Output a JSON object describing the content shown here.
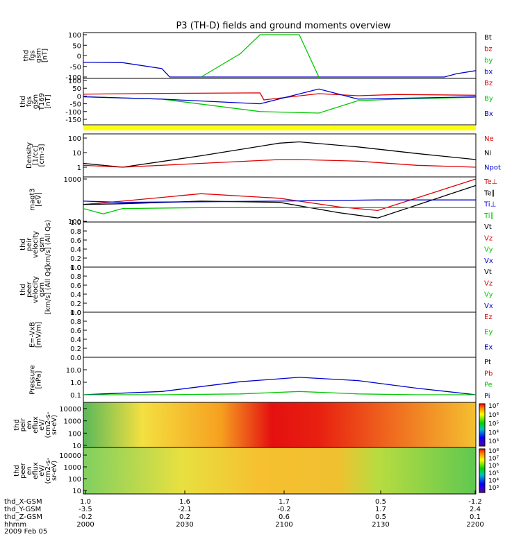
{
  "title": "P3 (TH-D) fields and ground moments overview",
  "colors": {
    "black": "#000000",
    "red": "#dd0000",
    "green": "#00c800",
    "blue": "#0000cc",
    "yellow": "#ffff00"
  },
  "panels": [
    {
      "id": "fgs",
      "ylabel": [
        "thd",
        "fgs",
        "gsm",
        "[nT]"
      ],
      "ticks": [
        "100",
        "50",
        "0",
        "-50",
        "-100"
      ],
      "legend": [
        {
          "t": "Bt",
          "c": "black"
        },
        {
          "t": "bz",
          "c": "red"
        },
        {
          "t": "by",
          "c": "green"
        },
        {
          "t": "bx",
          "c": "blue"
        }
      ]
    },
    {
      "id": "fgs2",
      "ylabel": [
        "thd",
        "fgs",
        "gsm",
        "T169",
        "[nT]"
      ],
      "ticks": [
        "100",
        "50",
        "0",
        "-50",
        "-100",
        "-150"
      ],
      "legend": [
        {
          "t": "Bz",
          "c": "red"
        },
        {
          "t": "By",
          "c": "green"
        },
        {
          "t": "Bx",
          "c": "blue"
        }
      ]
    },
    {
      "id": "density",
      "ylabel": [
        "Density",
        "[1/cc]",
        "[cm-3]"
      ],
      "ticks": [
        "100",
        "10",
        "1"
      ],
      "legend": [
        {
          "t": "Ne",
          "c": "red"
        },
        {
          "t": "Ni",
          "c": "black"
        },
        {
          "t": "Npot",
          "c": "blue"
        }
      ]
    },
    {
      "id": "temp",
      "ylabel": [
        "magt3",
        "[eV]"
      ],
      "ticks": [
        "1000",
        "100"
      ],
      "legend": [
        {
          "t": "Te⊥",
          "c": "red"
        },
        {
          "t": "Te∥",
          "c": "black"
        },
        {
          "t": "Ti⊥",
          "c": "blue"
        },
        {
          "t": "Ti∥",
          "c": "green"
        }
      ]
    },
    {
      "id": "peir",
      "ylabel": [
        "thd",
        "peir",
        "velocity",
        "gsm",
        "[km/s] (All Qs)"
      ],
      "ticks": [
        "1.0",
        "0.8",
        "0.6",
        "0.4",
        "0.2",
        "0.0"
      ],
      "legend": [
        {
          "t": "Vt",
          "c": "black"
        },
        {
          "t": "Vz",
          "c": "red"
        },
        {
          "t": "Vy",
          "c": "green"
        },
        {
          "t": "Vx",
          "c": "blue"
        }
      ]
    },
    {
      "id": "peer",
      "ylabel": [
        "thd",
        "peer",
        "velocity",
        "gsm",
        "[km/s] (All Qs)"
      ],
      "ticks": [
        "1.0",
        "0.8",
        "0.6",
        "0.4",
        "0.2",
        "0.0"
      ],
      "legend": [
        {
          "t": "Vt",
          "c": "black"
        },
        {
          "t": "Vz",
          "c": "red"
        },
        {
          "t": "Vy",
          "c": "green"
        },
        {
          "t": "Vx",
          "c": "blue"
        }
      ]
    },
    {
      "id": "efield",
      "ylabel": [
        "E=-VxB",
        "[mV/m]"
      ],
      "ticks": [
        "1.0",
        "0.8",
        "0.6",
        "0.4",
        "0.2",
        "0.0"
      ],
      "legend": [
        {
          "t": "Ez",
          "c": "red"
        },
        {
          "t": "Ey",
          "c": "green"
        },
        {
          "t": "Ex",
          "c": "blue"
        }
      ]
    },
    {
      "id": "pressure",
      "ylabel": [
        "Pressure",
        "[nPa]"
      ],
      "ticks": [
        "10.0",
        "1.0",
        "0.1"
      ],
      "legend": [
        {
          "t": "Pt",
          "c": "black"
        },
        {
          "t": "Pb",
          "c": "red"
        },
        {
          "t": "Pe",
          "c": "green"
        },
        {
          "t": "Pi",
          "c": "blue"
        }
      ]
    },
    {
      "id": "ion-spec",
      "ylabel": [
        "thd",
        "peir",
        "en",
        "eflux",
        "eV/",
        "(cm2-s-",
        "sr-eV)"
      ],
      "ticks": [
        "10000",
        "1000",
        "100",
        "10"
      ],
      "cbar": [
        "10⁷",
        "10⁶",
        "10⁵",
        "10⁴",
        "10³"
      ]
    },
    {
      "id": "ele-spec",
      "ylabel": [
        "thd",
        "peer",
        "en",
        "eflux",
        "eV/",
        "(cm2-s-",
        "sr-eV)"
      ],
      "ticks": [
        "10000",
        "1000",
        "100",
        "10"
      ],
      "cbar": [
        "10⁸",
        "10⁷",
        "10⁶",
        "10⁵",
        "10⁴",
        "10³"
      ]
    }
  ],
  "footer": {
    "rows": [
      {
        "label": "thd_X-GSM",
        "values": [
          "1.0",
          "1.6",
          "1.7",
          "0.5",
          "-1.2"
        ]
      },
      {
        "label": "thd_Y-GSM",
        "values": [
          "-3.5",
          "-2.1",
          "-0.2",
          "1.7",
          "2.4"
        ]
      },
      {
        "label": "thd_Z-GSM",
        "values": [
          "-0.2",
          "0.2",
          "0.6",
          "0.5",
          "0.1"
        ]
      },
      {
        "label": "hhmm",
        "values": [
          "2000",
          "2030",
          "2100",
          "2130",
          "2200"
        ]
      }
    ],
    "date": "2009 Feb 05"
  },
  "chart_data": {
    "type": "line",
    "title": "P3 (TH-D) fields and ground moments overview",
    "x": {
      "times": [
        "2000",
        "2030",
        "2100",
        "2130",
        "2200"
      ],
      "date": "2009 Feb 05"
    },
    "series": [
      {
        "name": "bx",
        "panel": "fgs",
        "t": [
          0,
          0.1,
          0.2,
          0.22,
          0.92,
          0.95,
          1.0
        ],
        "y": [
          -30,
          -32,
          -60,
          -100,
          -100,
          -85,
          -70
        ]
      },
      {
        "name": "by",
        "panel": "fgs",
        "t": [
          0.3,
          0.4,
          0.45,
          0.55,
          0.6
        ],
        "y": [
          -100,
          10,
          200,
          200,
          -100
        ]
      },
      {
        "name": "Bz",
        "panel": "fgs2",
        "t": [
          0,
          0.2,
          0.45,
          0.46,
          0.6,
          0.7,
          0.8,
          1.0
        ],
        "y": [
          12,
          17,
          20,
          -25,
          15,
          2,
          10,
          5
        ]
      },
      {
        "name": "By",
        "panel": "fgs2",
        "t": [
          0,
          0.2,
          0.45,
          0.6,
          0.7,
          0.8,
          1.0
        ],
        "y": [
          -5,
          -20,
          -100,
          -110,
          -30,
          -20,
          -8
        ]
      },
      {
        "name": "Bx",
        "panel": "fgs2",
        "t": [
          0,
          0.2,
          0.45,
          0.6,
          0.7,
          0.8,
          1.0
        ],
        "y": [
          -5,
          -20,
          -50,
          45,
          -20,
          -15,
          -5
        ]
      },
      {
        "name": "Ni",
        "panel": "density",
        "t": [
          0,
          0.1,
          0.3,
          0.5,
          0.55,
          0.7,
          0.85,
          1.0
        ],
        "y": [
          1,
          0.5,
          4,
          40,
          50,
          20,
          6,
          2
        ]
      },
      {
        "name": "Ne",
        "panel": "density",
        "t": [
          0,
          0.1,
          0.3,
          0.5,
          0.55,
          0.7,
          0.85,
          1.0
        ],
        "y": [
          0.7,
          0.5,
          1,
          2,
          2,
          1.5,
          0.7,
          0.3
        ]
      },
      {
        "name": "Te⊥",
        "panel": "temp",
        "t": [
          0,
          0.1,
          0.3,
          0.5,
          0.65,
          0.75,
          1.0
        ],
        "y": [
          250,
          300,
          450,
          350,
          220,
          180,
          1000
        ]
      },
      {
        "name": "Te∥",
        "panel": "temp",
        "t": [
          0,
          0.1,
          0.3,
          0.5,
          0.65,
          0.75,
          1.0
        ],
        "y": [
          250,
          260,
          300,
          280,
          160,
          120,
          700
        ]
      },
      {
        "name": "Ti⊥",
        "panel": "temp",
        "t": [
          0,
          0.1,
          0.3,
          0.5,
          0.75,
          1.0
        ],
        "y": [
          300,
          280,
          290,
          300,
          320,
          320
        ]
      },
      {
        "name": "Ti∥",
        "panel": "temp",
        "t": [
          0,
          0.05,
          0.1,
          0.3,
          0.6,
          1.0
        ],
        "y": [
          200,
          150,
          200,
          210,
          210,
          210
        ]
      },
      {
        "name": "Pi",
        "panel": "pressure",
        "t": [
          0,
          0.2,
          0.4,
          0.55,
          0.7,
          0.85,
          1.0
        ],
        "y": [
          0.03,
          0.1,
          0.8,
          2,
          1,
          0.2,
          0.04
        ]
      },
      {
        "name": "Pe",
        "panel": "pressure",
        "t": [
          0,
          0.2,
          0.4,
          0.55,
          0.7,
          0.85,
          1.0
        ],
        "y": [
          0.03,
          0.03,
          0.06,
          0.1,
          0.06,
          0.04,
          0.03
        ]
      }
    ]
  }
}
